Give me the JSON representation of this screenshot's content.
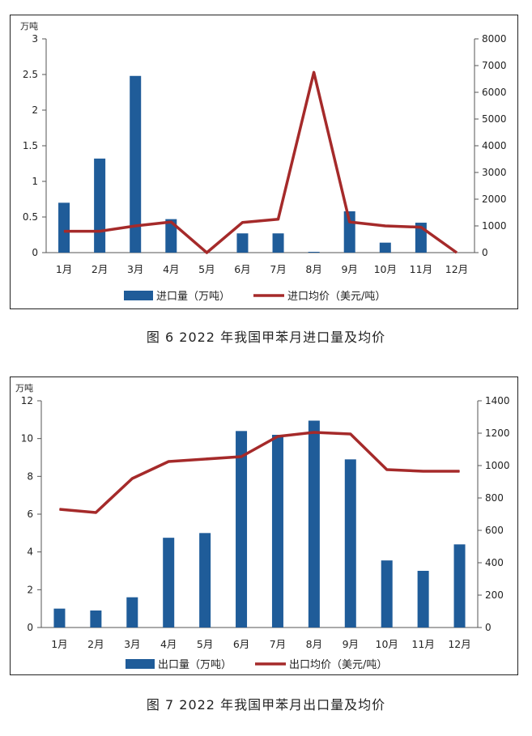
{
  "chart_data": [
    {
      "type": "bar",
      "categories": [
        "1月",
        "2月",
        "3月",
        "4月",
        "5月",
        "6月",
        "7月",
        "8月",
        "9月",
        "10月",
        "11月",
        "12月"
      ],
      "series": [
        {
          "name": "进口量（万吨）",
          "type": "bar",
          "axis": "left",
          "values": [
            0.7,
            1.32,
            2.48,
            0.47,
            0,
            0.27,
            0.27,
            0.01,
            0.58,
            0.14,
            0.42,
            0
          ]
        },
        {
          "name": "进口均价（美元/吨）",
          "type": "line",
          "axis": "right",
          "values": [
            800,
            800,
            1000,
            1150,
            0,
            1130,
            1250,
            6750,
            1150,
            1000,
            950,
            0
          ]
        }
      ],
      "ylabel": "万吨",
      "ylim": [
        0,
        3
      ],
      "y_ticks": [
        "0",
        "0.5",
        "1",
        "1.5",
        "2",
        "2.5",
        "3"
      ],
      "y2lim": [
        0,
        8000
      ],
      "y2_ticks": [
        "0",
        "1000",
        "2000",
        "3000",
        "4000",
        "5000",
        "6000",
        "7000",
        "8000"
      ],
      "legend_position": "bottom",
      "bar_color": "#1f5c99",
      "line_color": "#a52a2a",
      "caption": "图 6  2022 年我国甲苯月进口量及均价"
    },
    {
      "type": "bar",
      "categories": [
        "1月",
        "2月",
        "3月",
        "4月",
        "5月",
        "6月",
        "7月",
        "8月",
        "9月",
        "10月",
        "11月",
        "12月"
      ],
      "series": [
        {
          "name": "出口量（万吨）",
          "type": "bar",
          "axis": "left",
          "values": [
            1.0,
            0.9,
            1.6,
            4.75,
            5.0,
            10.4,
            10.2,
            10.95,
            8.9,
            3.55,
            3.0,
            4.4
          ]
        },
        {
          "name": "出口均价（美元/吨）",
          "type": "line",
          "axis": "right",
          "values": [
            730,
            710,
            920,
            1025,
            1040,
            1055,
            1180,
            1205,
            1195,
            975,
            965,
            965
          ]
        }
      ],
      "ylabel": "万吨",
      "ylim": [
        0,
        12
      ],
      "y_ticks": [
        "0",
        "2",
        "4",
        "6",
        "8",
        "10",
        "12"
      ],
      "y2lim": [
        0,
        1400
      ],
      "y2_ticks": [
        "0",
        "200",
        "400",
        "600",
        "800",
        "1000",
        "1200",
        "1400"
      ],
      "legend_position": "bottom",
      "bar_color": "#1f5c99",
      "line_color": "#a52a2a",
      "caption": "图 7  2022 年我国甲苯月出口量及均价"
    }
  ]
}
